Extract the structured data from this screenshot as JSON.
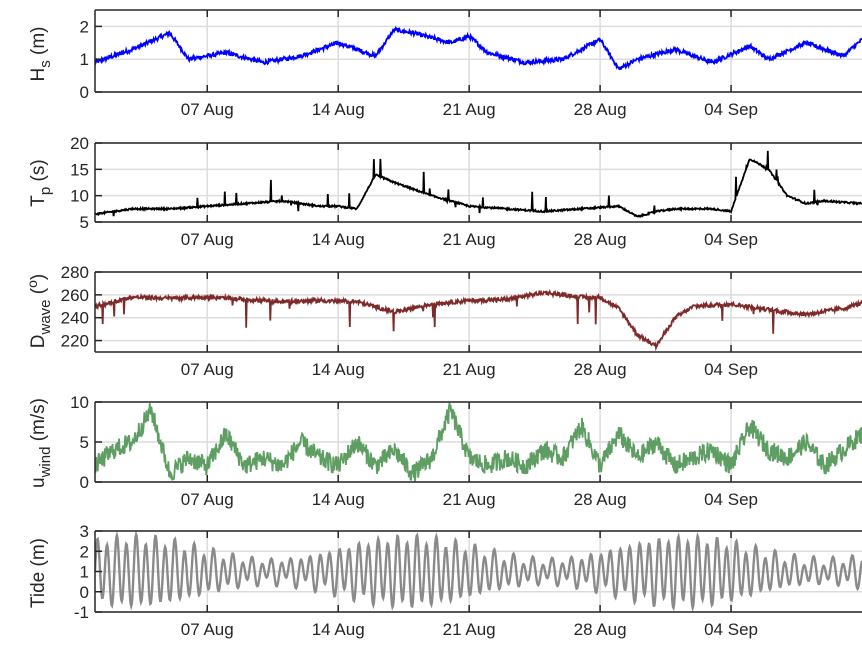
{
  "chart_data": [
    {
      "type": "line",
      "ylabel": "H_s (m)",
      "ylabel_parts": {
        "main": "H",
        "sub": "s",
        "unit": "(m)"
      },
      "ylim": [
        0,
        2.5
      ],
      "yticks": [
        0,
        1,
        2
      ],
      "ytick_labels": [
        "0",
        "1",
        "2"
      ],
      "xticks": [
        "2023-08-07",
        "2023-08-14",
        "2023-08-21",
        "2023-08-28",
        "2023-09-04"
      ],
      "xtick_labels": [
        "07 Aug",
        "14 Aug",
        "21 Aug",
        "28 Aug",
        "04 Sep"
      ],
      "grid": true,
      "color": "#0000ff",
      "series": [
        {
          "x": [
            "08-01",
            "08-03",
            "08-05",
            "08-06",
            "08-08",
            "08-10",
            "08-12",
            "08-14",
            "08-16",
            "08-17",
            "08-18",
            "08-20",
            "08-21",
            "08-22",
            "08-24",
            "08-26",
            "08-28",
            "08-29",
            "08-30",
            "09-01",
            "09-03",
            "09-05",
            "09-06",
            "09-08",
            "09-10",
            "09-11"
          ],
          "values": [
            0.9,
            1.3,
            1.8,
            1.0,
            1.2,
            0.9,
            1.1,
            1.5,
            1.1,
            1.9,
            1.8,
            1.5,
            1.7,
            1.2,
            0.9,
            1.0,
            1.6,
            0.7,
            1.0,
            1.3,
            0.9,
            1.4,
            1.0,
            1.5,
            1.1,
            1.6
          ]
        }
      ]
    },
    {
      "type": "line",
      "ylabel": "T_p (s)",
      "ylabel_parts": {
        "main": "T",
        "sub": "p",
        "unit": "(s)"
      },
      "ylim": [
        5,
        20
      ],
      "yticks": [
        5,
        10,
        15,
        20
      ],
      "ytick_labels": [
        "5",
        "10",
        "15",
        "20"
      ],
      "xticks": [
        "2023-08-07",
        "2023-08-14",
        "2023-08-21",
        "2023-08-28",
        "2023-09-04"
      ],
      "xtick_labels": [
        "07 Aug",
        "14 Aug",
        "21 Aug",
        "28 Aug",
        "04 Sep"
      ],
      "grid": true,
      "color": "#000000",
      "series": [
        {
          "x": [
            "08-01",
            "08-03",
            "08-05",
            "08-07",
            "08-09",
            "08-11",
            "08-13",
            "08-14",
            "08-15",
            "08-16",
            "08-17",
            "08-19",
            "08-21",
            "08-23",
            "08-25",
            "08-27",
            "08-29",
            "08-30",
            "08-31",
            "09-01",
            "09-03",
            "09-04",
            "09-05",
            "09-06",
            "09-07",
            "09-08",
            "09-09",
            "09-11"
          ],
          "values": [
            6.5,
            7.5,
            7.5,
            8.0,
            8.5,
            9.0,
            8.0,
            8.0,
            7.5,
            14.0,
            12.5,
            10.0,
            8.0,
            7.5,
            7.0,
            7.5,
            8.0,
            6.0,
            7.0,
            7.5,
            7.5,
            7.0,
            17.0,
            15.0,
            10.0,
            8.5,
            9.0,
            8.5
          ]
        }
      ]
    },
    {
      "type": "line",
      "ylabel": "D_wave (°)",
      "ylabel_parts": {
        "main": "D",
        "sub": "wave",
        "unit_pre": "(",
        "unit_sup": "o",
        "unit_post": ")"
      },
      "ylim": [
        210,
        280
      ],
      "yticks": [
        220,
        240,
        260,
        280
      ],
      "ytick_labels": [
        "220",
        "240",
        "260",
        "280"
      ],
      "xticks": [
        "2023-08-07",
        "2023-08-14",
        "2023-08-21",
        "2023-08-28",
        "2023-09-04"
      ],
      "xtick_labels": [
        "07 Aug",
        "14 Aug",
        "21 Aug",
        "28 Aug",
        "04 Sep"
      ],
      "grid": true,
      "color": "#7f2a2a",
      "series": [
        {
          "x": [
            "08-01",
            "08-03",
            "08-05",
            "08-07",
            "08-09",
            "08-11",
            "08-13",
            "08-15",
            "08-17",
            "08-19",
            "08-21",
            "08-23",
            "08-25",
            "08-27",
            "08-28",
            "08-29",
            "08-30",
            "08-31",
            "09-01",
            "09-02",
            "09-04",
            "09-06",
            "09-08",
            "09-10",
            "09-11"
          ],
          "values": [
            250,
            258,
            257,
            258,
            256,
            254,
            255,
            254,
            245,
            252,
            255,
            256,
            262,
            258,
            258,
            248,
            225,
            215,
            240,
            250,
            252,
            247,
            243,
            248,
            253
          ]
        }
      ]
    },
    {
      "type": "line",
      "ylabel": "u_wind (m/s)",
      "ylabel_parts": {
        "main": "u",
        "sub": "wind",
        "unit": "(m/s)"
      },
      "ylim": [
        0,
        10
      ],
      "yticks": [
        0,
        5,
        10
      ],
      "ytick_labels": [
        "0",
        "5",
        "10"
      ],
      "xticks": [
        "2023-08-07",
        "2023-08-14",
        "2023-08-21",
        "2023-08-28",
        "2023-09-04"
      ],
      "xtick_labels": [
        "07 Aug",
        "14 Aug",
        "21 Aug",
        "28 Aug",
        "04 Sep"
      ],
      "grid": true,
      "color": "#5e9e62",
      "series": [
        {
          "x": [
            "08-01",
            "08-02",
            "08-03",
            "08-04",
            "08-05",
            "08-06",
            "08-07",
            "08-08",
            "08-09",
            "08-10",
            "08-11",
            "08-12",
            "08-13",
            "08-14",
            "08-15",
            "08-16",
            "08-17",
            "08-18",
            "08-19",
            "08-20",
            "08-21",
            "08-22",
            "08-23",
            "08-24",
            "08-25",
            "08-26",
            "08-27",
            "08-28",
            "08-29",
            "08-30",
            "08-31",
            "09-01",
            "09-02",
            "09-03",
            "09-04",
            "09-05",
            "09-06",
            "09-07",
            "09-08",
            "09-09",
            "09-10",
            "09-11"
          ],
          "values": [
            2,
            4,
            5,
            9,
            1,
            3,
            2,
            6,
            2,
            3,
            2,
            5,
            3,
            2,
            5,
            2,
            4,
            1,
            3,
            9,
            3,
            2,
            3,
            2,
            4,
            3,
            7,
            2,
            6,
            3,
            5,
            2,
            3,
            4,
            2,
            7,
            4,
            3,
            5,
            2,
            4,
            6
          ]
        }
      ]
    },
    {
      "type": "line",
      "ylabel": "Tide (m)",
      "ylabel_parts": {
        "main": "Tide (m)"
      },
      "ylim": [
        -1,
        3
      ],
      "yticks": [
        -1,
        0,
        1,
        2,
        3
      ],
      "ytick_labels": [
        "-1",
        "0",
        "1",
        "2",
        "3"
      ],
      "xticks": [
        "2023-08-07",
        "2023-08-14",
        "2023-08-21",
        "2023-08-28",
        "2023-09-04"
      ],
      "xtick_labels": [
        "07 Aug",
        "14 Aug",
        "21 Aug",
        "28 Aug",
        "04 Sep"
      ],
      "grid": true,
      "color": "#8a8a8a",
      "tide_model": {
        "mean": 1.0,
        "semidiurnal_period_hours": 12.42,
        "amplitude_range": [
          0.5,
          1.6
        ],
        "spring_neap_period_days": 14.77
      }
    }
  ]
}
